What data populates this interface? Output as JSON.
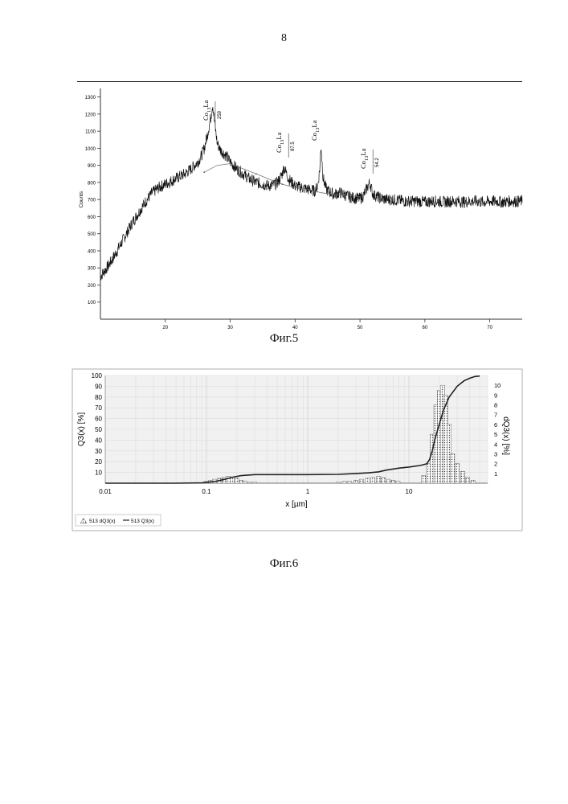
{
  "page_number": "8",
  "captions": {
    "fig5": "Фиг.5",
    "fig6": "Фиг.6"
  },
  "chart_data": [
    {
      "type": "line",
      "title": "",
      "xlabel": "",
      "ylabel": "Counts",
      "xlim": [
        10,
        75
      ],
      "ylim": [
        0,
        1350
      ],
      "x_ticks": [
        20,
        30,
        40,
        50,
        60,
        70
      ],
      "y_ticks": [
        100,
        200,
        300,
        400,
        500,
        600,
        700,
        800,
        900,
        1000,
        1100,
        1200,
        1300
      ],
      "grid": false,
      "series": [
        {
          "name": "",
          "x": [
            10,
            11,
            12,
            13,
            14,
            15,
            16,
            17,
            18,
            19,
            20,
            21,
            22,
            23,
            24,
            25,
            25.5,
            26,
            26.5,
            27,
            27.3,
            27.6,
            28,
            28.5,
            29,
            29.5,
            30,
            31,
            32,
            33,
            34,
            35,
            36,
            37,
            37.5,
            38,
            38.3,
            38.6,
            39,
            39.5,
            40,
            41,
            42,
            43,
            43.5,
            43.8,
            44,
            44.3,
            44.8,
            45.5,
            46,
            47,
            48,
            49,
            50,
            50.5,
            51,
            51.5,
            52,
            53,
            54,
            55,
            56,
            57,
            58,
            59,
            60,
            61,
            62,
            63,
            64,
            65,
            66,
            67,
            68,
            69,
            70,
            71,
            72,
            73,
            74,
            75
          ],
          "y": [
            250,
            300,
            360,
            430,
            500,
            570,
            630,
            690,
            740,
            770,
            790,
            810,
            830,
            850,
            880,
            920,
            950,
            1000,
            1080,
            1180,
            1260,
            1150,
            1030,
            990,
            970,
            950,
            920,
            880,
            850,
            820,
            800,
            790,
            780,
            790,
            810,
            850,
            890,
            860,
            820,
            800,
            780,
            770,
            760,
            750,
            780,
            880,
            1020,
            830,
            760,
            740,
            730,
            740,
            720,
            710,
            705,
            720,
            760,
            800,
            730,
            710,
            700,
            700,
            695,
            690,
            690,
            690,
            685,
            690,
            690,
            685,
            690,
            690,
            685,
            690,
            690,
            685,
            690,
            690,
            685,
            690,
            690,
            690
          ]
        },
        {
          "name": "",
          "x": [
            26,
            28,
            30,
            32,
            34,
            36,
            38,
            40,
            42,
            44,
            46,
            48,
            50
          ],
          "y": [
            860,
            900,
            910,
            880,
            850,
            820,
            790,
            770,
            760,
            740,
            730,
            725,
            715
          ]
        }
      ],
      "annotations": [
        {
          "label": "Co13La",
          "x": 27.2,
          "peak_value": "259"
        },
        {
          "label": "Co13La",
          "x": 38.5,
          "peak_value": "87.5"
        },
        {
          "label": "Co13La",
          "x": 43.9,
          "peak_value": ""
        },
        {
          "label": "Co13La",
          "x": 51.5,
          "peak_value": "54.2"
        }
      ]
    },
    {
      "type": "bar",
      "title": "",
      "xlabel": "x [µm]",
      "ylabel": "Q3(x) [%]",
      "y2label": "dQ3(x) [%]",
      "x_scale": "log",
      "xlim": [
        0.01,
        60
      ],
      "ylim": [
        0,
        100
      ],
      "y2lim": [
        0,
        11
      ],
      "x_ticks": [
        "0.01",
        "0.1",
        "1",
        "10"
      ],
      "y_ticks": [
        10,
        20,
        30,
        40,
        50,
        60,
        70,
        80,
        90,
        100
      ],
      "y2_ticks": [
        1,
        2,
        3,
        4,
        5,
        6,
        7,
        8,
        9,
        10
      ],
      "grid": true,
      "legend": {
        "placement": "bottom-left",
        "entries": [
          "513 dQ3(x)",
          "513 Q3(x)"
        ]
      },
      "bars_dQ3": {
        "x": [
          0.1,
          0.11,
          0.12,
          0.135,
          0.15,
          0.165,
          0.18,
          0.2,
          0.22,
          0.24,
          0.27,
          0.3,
          2.0,
          2.3,
          2.6,
          3.0,
          3.4,
          3.9,
          4.4,
          5.0,
          5.6,
          6.3,
          7.0,
          7.8,
          14,
          15.5,
          17,
          18.5,
          20,
          21.5,
          23,
          25,
          27,
          30,
          34,
          38,
          43
        ],
        "y": [
          0.2,
          0.3,
          0.4,
          0.5,
          0.6,
          0.7,
          0.6,
          0.5,
          0.3,
          0.2,
          0.1,
          0.1,
          0.1,
          0.2,
          0.2,
          0.3,
          0.4,
          0.5,
          0.6,
          0.7,
          0.6,
          0.4,
          0.3,
          0.2,
          0.8,
          2.0,
          5.0,
          8.0,
          9.5,
          10.0,
          9.0,
          6.0,
          3.0,
          2.0,
          1.2,
          0.6,
          0.3
        ]
      },
      "curve_Q3": {
        "x": [
          0.01,
          0.05,
          0.09,
          0.12,
          0.15,
          0.18,
          0.22,
          0.3,
          0.5,
          1,
          2,
          3,
          4,
          5,
          6,
          8,
          10,
          13,
          15,
          16,
          17,
          18,
          20,
          22,
          25,
          30,
          35,
          40,
          45,
          50
        ],
        "y": [
          0,
          0,
          0.3,
          1.5,
          3.5,
          5.5,
          7,
          8,
          8,
          8,
          8.2,
          9,
          9.6,
          10.5,
          12.2,
          14,
          15,
          16.5,
          18,
          22,
          30,
          40,
          55,
          68,
          80,
          90,
          95,
          97.5,
          99,
          99.5
        ]
      }
    }
  ]
}
